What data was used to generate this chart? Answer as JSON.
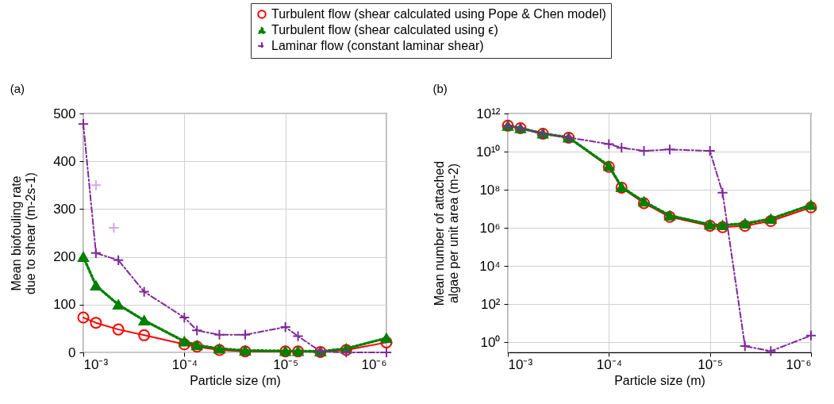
{
  "chart_data": [
    {
      "type": "line",
      "title": "(a)",
      "xlabel": "Particle size (m)",
      "ylabel": "Mean biofouling rate\ndue to shear (m-2s-1)",
      "log": "x",
      "grid": true,
      "legend": "top",
      "xlim": [
        0.001,
        1e-06
      ],
      "xticks": [
        {
          "value": 0.001,
          "label": "10⁻³"
        },
        {
          "value": 0.0001,
          "label": "10⁻⁴"
        },
        {
          "value": 1e-05,
          "label": "10⁻⁵"
        },
        {
          "value": 1e-06,
          "label": "10⁻⁶"
        }
      ],
      "ylim": [
        0,
        500
      ],
      "yticks": [
        0,
        100,
        200,
        300,
        400,
        500
      ],
      "x": [
        0.001,
        0.00075,
        0.00045,
        0.00025,
        0.0001,
        7.5e-05,
        4.5e-05,
        2.5e-05,
        1e-05,
        7.5e-06,
        4.5e-06,
        2.5e-06,
        1e-06
      ],
      "series": [
        {
          "name": "Turbulent flow (shear calculated using Pope & Chen model)",
          "color": "#ff0000",
          "marker": "circle",
          "line_style": "solid",
          "values": [
            73,
            62,
            48,
            36,
            17,
            12,
            5,
            2,
            2,
            2,
            1,
            5,
            21
          ]
        },
        {
          "name": "Turbulent flow (shear calculated using ϵ)",
          "color": "#008000",
          "marker": "triangle",
          "line_style": "dotted",
          "values": [
            200,
            140,
            100,
            67,
            23,
            15,
            8,
            4,
            3,
            3,
            2,
            8,
            30
          ]
        },
        {
          "name": "Laminar flow (constant laminar shear)",
          "color": "#7f2a9a",
          "marker": "cross",
          "line_style": "dashed",
          "values": [
            478,
            208,
            193,
            127,
            73,
            46,
            37,
            37,
            53,
            34,
            2,
            0,
            0
          ]
        },
        {
          "type": "scatter",
          "color": "#d9a6e6",
          "marker": "cross",
          "x": [
            0.00075,
            0.0005
          ],
          "values": [
            350,
            261
          ]
        }
      ]
    },
    {
      "type": "line",
      "title": "(b)",
      "xlabel": "Particle size (m)",
      "ylabel": "Mean number of attached\nalgae per unit area (m-2)",
      "log": "xy",
      "grid": true,
      "xlim": [
        0.001,
        1e-06
      ],
      "xticks": [
        {
          "value": 0.001,
          "label": "10⁻³"
        },
        {
          "value": 0.0001,
          "label": "10⁻⁴"
        },
        {
          "value": 1e-05,
          "label": "10⁻⁵"
        },
        {
          "value": 1e-06,
          "label": "10⁻⁶"
        }
      ],
      "ylim": [
        0.3,
        1000000000000
      ],
      "yticks": [
        {
          "value": 1,
          "label": "10⁰"
        },
        {
          "value": 100,
          "label": "10²"
        },
        {
          "value": 10000,
          "label": "10⁴"
        },
        {
          "value": 1000000,
          "label": "10⁶"
        },
        {
          "value": 100000000,
          "label": "10⁸"
        },
        {
          "value": 10000000000,
          "label": "10¹⁰"
        },
        {
          "value": 1000000000000,
          "label": "10¹²"
        }
      ],
      "x": [
        0.001,
        0.00075,
        0.00045,
        0.00025,
        0.0001,
        7.5e-05,
        4.5e-05,
        2.5e-05,
        1e-05,
        7.5e-06,
        4.5e-06,
        2.5e-06,
        1e-06
      ],
      "series": [
        {
          "color": "#ff0000",
          "marker": "circle",
          "line_style": "solid",
          "values": [
            230000000000,
            170000000000,
            87000000000,
            54000000000,
            1600000000,
            130000000,
            20000000,
            3800000,
            1300000,
            1100000,
            1300000,
            2300000,
            12000000
          ]
        },
        {
          "color": "#008000",
          "marker": "triangle",
          "line_style": "dotted",
          "values": [
            230000000000,
            170000000000,
            90000000000,
            55000000000,
            1800000000,
            140000000,
            24000000,
            4500000,
            1500000,
            1400000,
            1700000,
            3000000,
            16000000
          ]
        },
        {
          "color": "#7f2a9a",
          "marker": "cross",
          "line_style": "dashed",
          "values": [
            230000000000,
            170000000000,
            87000000000,
            55000000000,
            25000000000,
            16000000000,
            11000000000,
            13000000000,
            11000000000,
            70000000,
            0.64,
            0.35,
            2.3
          ]
        }
      ]
    }
  ]
}
